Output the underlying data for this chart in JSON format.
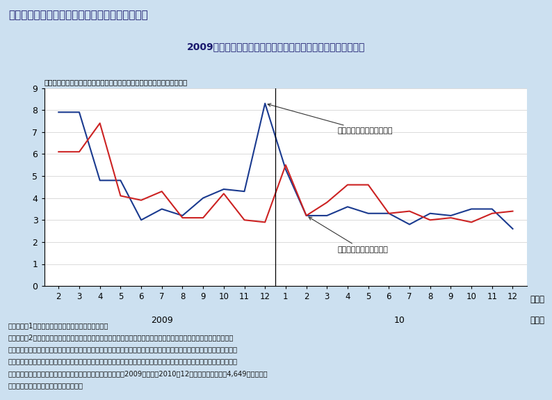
{
  "title_main": "第１－２－６図　物価予想転換世帯の割合の推移",
  "title_sub": "2009年末にインフレ予想からデフレ予想に転換した世帯が多い",
  "ylabel_note": "（２ヶ月連続で回答した世帯のうち物価予想を転換した世帯の割合、％）",
  "xlabel_month": "（月）",
  "year_label_2009": "2009",
  "year_label_10": "10",
  "year_label_nen": "（年）",
  "blue_label": "インフレ予想への転換世帯",
  "red_label": "デフレ予想への転換世帯",
  "x_ticks_2009": [
    2,
    3,
    4,
    5,
    6,
    7,
    8,
    9,
    10,
    11,
    12
  ],
  "x_ticks_2010": [
    1,
    2,
    3,
    4,
    5,
    6,
    7,
    8,
    9,
    10,
    11,
    12
  ],
  "blue_data_2009": [
    7.9,
    7.9,
    4.8,
    4.8,
    3.0,
    3.5,
    3.2,
    4.0,
    4.4,
    4.3,
    8.3
  ],
  "blue_data_2010": [
    5.3,
    3.2,
    3.2,
    3.6,
    3.3,
    3.3,
    2.8,
    3.3,
    3.2,
    3.5,
    3.5,
    2.6
  ],
  "red_data_2009": [
    6.1,
    6.1,
    7.4,
    4.1,
    3.9,
    4.3,
    3.1,
    3.1,
    4.2,
    3.0,
    2.9
  ],
  "red_data_2010": [
    5.5,
    3.2,
    3.8,
    4.6,
    4.6,
    3.3,
    3.4,
    3.0,
    3.1,
    2.9,
    3.3,
    3.4
  ],
  "ylim": [
    0,
    9
  ],
  "yticks": [
    0,
    1,
    2,
    3,
    4,
    5,
    6,
    7,
    8,
    9
  ],
  "bg_color": "#cce0f0",
  "header_color": "#aacce0",
  "plot_bg_color": "#ffffff",
  "blue_color": "#1a3a8f",
  "red_color": "#cc2222",
  "footnote_lines": [
    "（備考）　1．内閣府「消費動向調査」により作成。",
    "　　　　　2．グラフは、「あなたの世帯が日ごろよく購入する品物の価格について、１年後どの程度になると思います",
    "　　　　　　　か。」との問に対し、前月に「下がる」と回答し、当月に「上がる」と回答した世帯を「インフレ予想への",
    "　　　　　　　転換世帯」、前月に「上がる」と回答し、当月に「下がる」と回答した世帯を「デフレ予想への転換世帯」",
    "　　　　　　　とし、２ヶ月連続で回答した世帯（対象期間：2009年１月～2010年12月調査、期間中平均4,649世帯）に対",
    "　　　　　　　する割合をとったもの。"
  ]
}
